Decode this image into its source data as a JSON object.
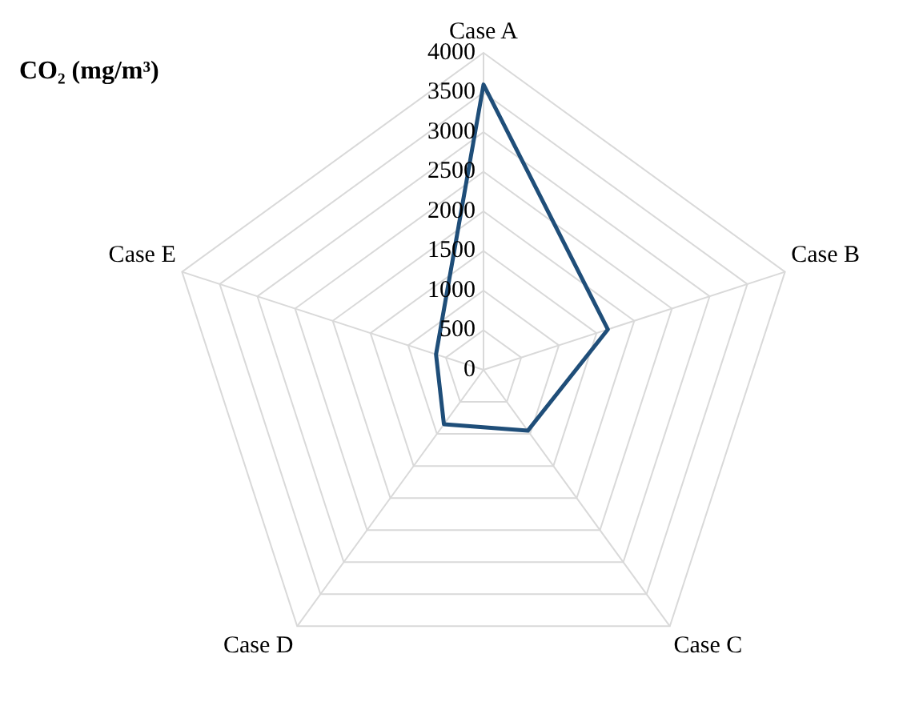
{
  "chart_data": {
    "type": "radar",
    "title": "CO₂ (mg/m³)",
    "categories": [
      "Case A",
      "Case B",
      "Case C",
      "Case D",
      "Case E"
    ],
    "series": [
      {
        "color": "#1f4e79",
        "values": [
          3600,
          1650,
          950,
          850,
          630
        ]
      }
    ],
    "ylim": [
      0,
      4000
    ],
    "yticks": [
      0,
      500,
      1000,
      1500,
      2000,
      2500,
      3000,
      3500,
      4000
    ],
    "grid": true,
    "legend": false,
    "marker": "none",
    "line_style": "solid"
  }
}
